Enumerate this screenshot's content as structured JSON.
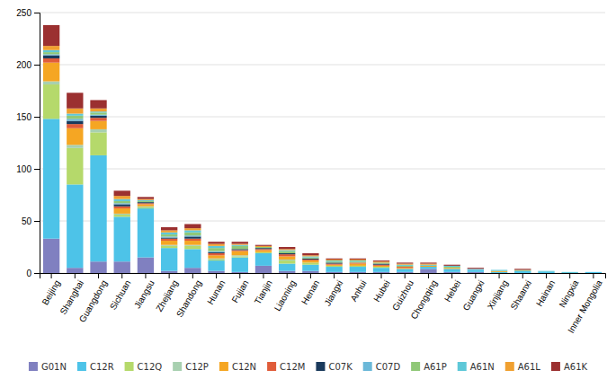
{
  "chart_data": {
    "type": "bar",
    "stacked": true,
    "categories": [
      "Beijing",
      "Shanghai",
      "Guangdong",
      "Sichuan",
      "Jiangsu",
      "Zhejiang",
      "Shandong",
      "Hunan",
      "Fujian",
      "Tianjin",
      "Liaoning",
      "Henan",
      "Jiangxi",
      "Anhui",
      "Hubei",
      "Guizhou",
      "Chongqing",
      "Hebei",
      "Guangxi",
      "Xinjiang",
      "Shaanxi",
      "Hainan",
      "Ningxia",
      "Inner Mongolia"
    ],
    "series": [
      {
        "name": "G01N",
        "color": "#8080c0",
        "values": [
          33,
          5,
          11,
          11,
          15,
          2,
          5,
          2,
          1,
          7,
          2,
          2,
          1,
          1,
          1,
          1,
          4,
          1,
          1,
          0,
          0,
          0,
          0,
          0
        ]
      },
      {
        "name": "C12R",
        "color": "#4dc3e8",
        "values": [
          115,
          80,
          102,
          43,
          47,
          22,
          18,
          10,
          14,
          12,
          7,
          6,
          5,
          5,
          4,
          3,
          2,
          3,
          2,
          1,
          2,
          1,
          0,
          1
        ]
      },
      {
        "name": "C12Q",
        "color": "#b5d96b",
        "values": [
          33,
          35,
          22,
          2,
          1,
          2,
          3,
          1,
          1,
          1,
          3,
          2,
          1,
          1,
          1,
          0,
          0,
          0,
          0,
          0,
          0,
          0,
          0,
          0
        ]
      },
      {
        "name": "C12P",
        "color": "#a8d0b0",
        "values": [
          3,
          3,
          3,
          1,
          1,
          1,
          1,
          1,
          1,
          0,
          1,
          0,
          0,
          0,
          0,
          0,
          0,
          0,
          0,
          0,
          0,
          0,
          0,
          0
        ]
      },
      {
        "name": "C12N",
        "color": "#f5a623",
        "values": [
          18,
          16,
          8,
          5,
          2,
          4,
          4,
          3,
          4,
          2,
          3,
          2,
          1,
          2,
          1,
          1,
          1,
          1,
          0,
          1,
          0,
          0,
          0,
          0
        ]
      },
      {
        "name": "C12M",
        "color": "#e05c3a",
        "values": [
          4,
          4,
          3,
          2,
          1,
          2,
          2,
          2,
          1,
          1,
          2,
          1,
          1,
          1,
          1,
          1,
          0,
          0,
          0,
          0,
          0,
          0,
          0,
          0
        ]
      },
      {
        "name": "C07K",
        "color": "#1a3a5c",
        "values": [
          3,
          3,
          2,
          2,
          1,
          1,
          2,
          1,
          1,
          1,
          1,
          1,
          1,
          0,
          1,
          0,
          0,
          0,
          0,
          0,
          0,
          0,
          0,
          0
        ]
      },
      {
        "name": "C07D",
        "color": "#6bb8d8",
        "values": [
          1,
          2,
          1,
          1,
          0,
          1,
          1,
          1,
          0,
          0,
          0,
          0,
          0,
          0,
          0,
          0,
          0,
          0,
          0,
          0,
          0,
          0,
          0,
          0
        ]
      },
      {
        "name": "A61P",
        "color": "#90c878",
        "values": [
          2,
          3,
          2,
          2,
          1,
          2,
          3,
          3,
          3,
          1,
          2,
          1,
          1,
          1,
          1,
          1,
          0,
          1,
          0,
          0,
          1,
          0,
          0,
          0
        ]
      },
      {
        "name": "A61N",
        "color": "#5ec8d8",
        "values": [
          2,
          2,
          1,
          2,
          1,
          2,
          2,
          2,
          1,
          0,
          1,
          1,
          1,
          1,
          0,
          1,
          1,
          1,
          1,
          1,
          0,
          1,
          1,
          0
        ]
      },
      {
        "name": "A61L",
        "color": "#f0a030",
        "values": [
          4,
          5,
          3,
          3,
          1,
          2,
          2,
          2,
          1,
          1,
          1,
          1,
          1,
          1,
          1,
          1,
          1,
          0,
          0,
          0,
          0,
          0,
          0,
          0
        ]
      },
      {
        "name": "A61K",
        "color": "#9b3030",
        "values": [
          20,
          15,
          8,
          5,
          2,
          3,
          4,
          2,
          2,
          1,
          2,
          2,
          1,
          1,
          1,
          1,
          1,
          1,
          1,
          0,
          1,
          0,
          0,
          0
        ]
      }
    ],
    "ylim": [
      0,
      250
    ],
    "yticks": [
      0,
      50,
      100,
      150,
      200,
      250
    ],
    "grid": true,
    "legend": "bottom"
  }
}
